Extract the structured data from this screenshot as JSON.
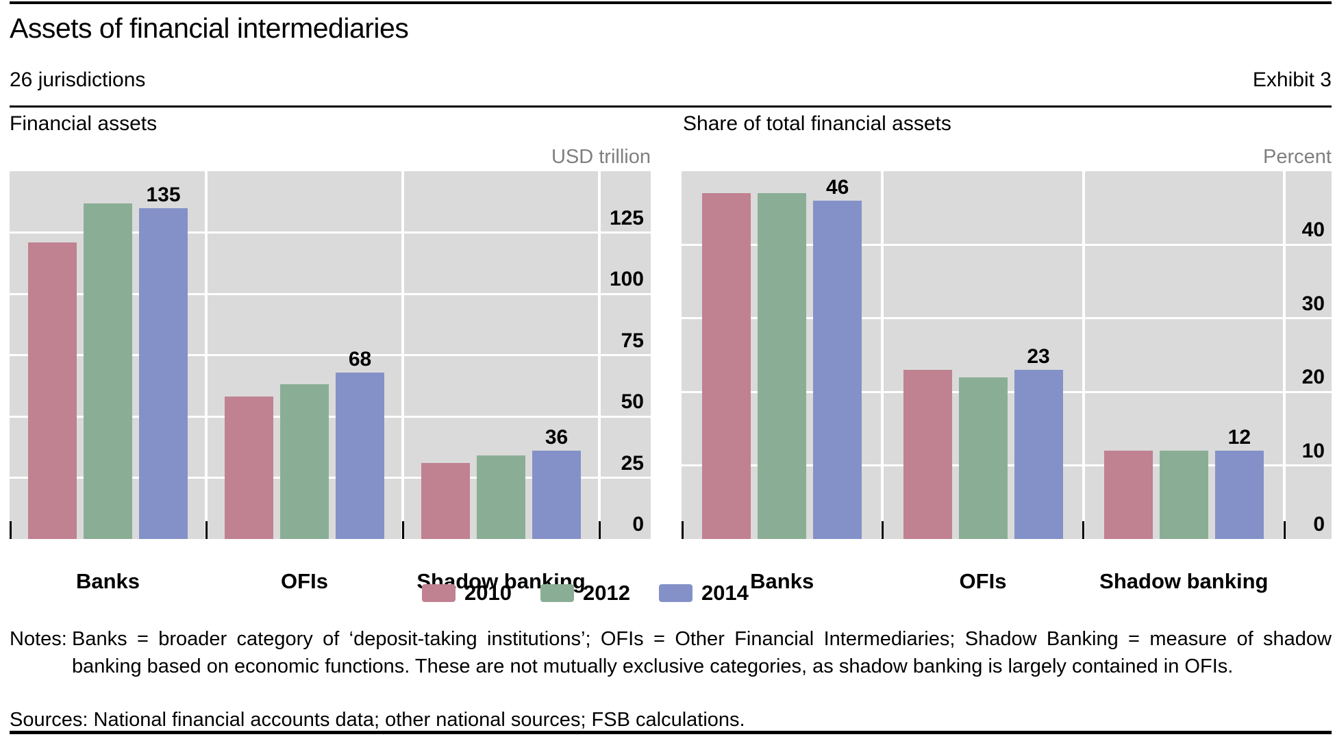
{
  "header": {
    "title": "Assets of financial intermediaries",
    "subtitle": "26 jurisdictions",
    "exhibit": "Exhibit 3"
  },
  "legend": {
    "items": [
      {
        "label": "2010",
        "color": "#c08191"
      },
      {
        "label": "2012",
        "color": "#8aae95"
      },
      {
        "label": "2014",
        "color": "#8491c8"
      }
    ]
  },
  "chart_data": [
    {
      "type": "bar",
      "title": "Financial assets",
      "unit_label": "USD trillion",
      "categories": [
        "Banks",
        "OFIs",
        "Shadow banking"
      ],
      "series": [
        {
          "name": "2010",
          "color": "#c08191",
          "values": [
            121,
            58,
            31
          ]
        },
        {
          "name": "2012",
          "color": "#8aae95",
          "values": [
            137,
            63,
            34
          ]
        },
        {
          "name": "2014",
          "color": "#8491c8",
          "values": [
            135,
            68,
            36
          ],
          "data_labels": true
        }
      ],
      "ylim": [
        0,
        150
      ],
      "ytick_step": 25,
      "ytick_labels": [
        "0",
        "25",
        "50",
        "75",
        "100",
        "125"
      ],
      "grid": true,
      "axis_side": "right",
      "plot_bg": "#dadada",
      "grid_color": "#ffffff"
    },
    {
      "type": "bar",
      "title": "Share of total financial assets",
      "unit_label": "Percent",
      "categories": [
        "Banks",
        "OFIs",
        "Shadow banking"
      ],
      "series": [
        {
          "name": "2010",
          "color": "#c08191",
          "values": [
            47,
            23,
            12
          ]
        },
        {
          "name": "2012",
          "color": "#8aae95",
          "values": [
            47,
            22,
            12
          ]
        },
        {
          "name": "2014",
          "color": "#8491c8",
          "values": [
            46,
            23,
            12
          ],
          "data_labels": true
        }
      ],
      "ylim": [
        0,
        50
      ],
      "ytick_step": 10,
      "ytick_labels": [
        "0",
        "10",
        "20",
        "30",
        "40"
      ],
      "grid": true,
      "axis_side": "right",
      "plot_bg": "#dadada",
      "grid_color": "#ffffff"
    }
  ],
  "notes": {
    "notes_label": "Notes:",
    "notes_text": "Banks = broader category of ‘deposit-taking institutions’; OFIs = Other Financial Intermediaries; Shadow Banking = measure of shadow banking based on economic functions. These are not mutually exclusive categories, as shadow banking is largely contained in OFIs.",
    "sources_text": "Sources: National financial accounts data; other national sources; FSB calculations."
  }
}
